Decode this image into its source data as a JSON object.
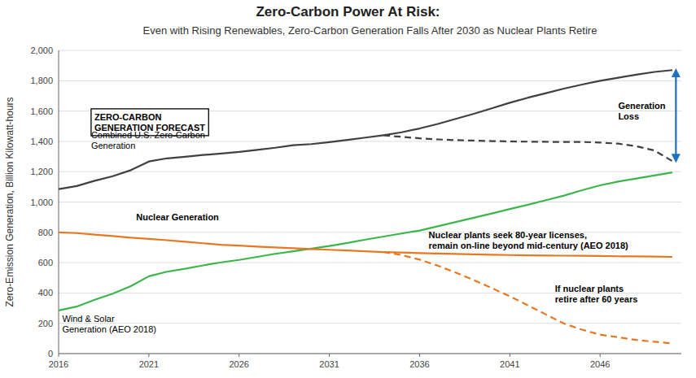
{
  "chart_data": {
    "type": "line",
    "title": "Zero-Carbon Power At Risk:",
    "subtitle": "Even with Rising Renewables, Zero-Carbon Generation Falls After 2030 as Nuclear Plants Retire",
    "y_label": "Zero-Emission Generation, Billion Kilowatt-hours",
    "xlim": [
      2016,
      2050.5
    ],
    "xticks": [
      2016,
      2021,
      2026,
      2031,
      2036,
      2041,
      2046
    ],
    "ylim": [
      0,
      2000
    ],
    "yticks": [
      0,
      200,
      400,
      600,
      800,
      {
        "value": 1000,
        "label": "1,000"
      },
      {
        "value": 1200,
        "label": "1,200"
      },
      {
        "value": 1400,
        "label": "1,400"
      },
      {
        "value": 1600,
        "label": "1,600"
      },
      {
        "value": 1800,
        "label": "1,800"
      },
      {
        "value": 2000,
        "label": "2,000"
      }
    ],
    "grid": true,
    "series": [
      {
        "color": "#3cb54a",
        "line_style": "solid",
        "x": [
          2016,
          2017,
          2018,
          2019,
          2020,
          2021,
          2022,
          2023,
          2024,
          2025,
          2026,
          2027,
          2028,
          2029,
          2030,
          2031,
          2032,
          2033,
          2034,
          2035,
          2036,
          2037,
          2038,
          2039,
          2040,
          2041,
          2042,
          2043,
          2044,
          2045,
          2046,
          2047,
          2048,
          2049,
          2050
        ],
        "values": [
          285,
          310,
          355,
          395,
          445,
          510,
          540,
          560,
          582,
          602,
          618,
          638,
          658,
          675,
          692,
          710,
          730,
          752,
          772,
          792,
          812,
          840,
          868,
          896,
          924,
          954,
          982,
          1012,
          1042,
          1078,
          1110,
          1135,
          1155,
          1175,
          1195
        ]
      },
      {
        "color": "#e87722",
        "line_style": "solid",
        "x": [
          2016,
          2017,
          2018,
          2019,
          2020,
          2021,
          2022,
          2023,
          2024,
          2025,
          2026,
          2027,
          2028,
          2029,
          2030,
          2031,
          2032,
          2033,
          2034
        ],
        "values": [
          800,
          795,
          785,
          775,
          765,
          757,
          748,
          738,
          728,
          718,
          712,
          706,
          700,
          695,
          690,
          685,
          680,
          675,
          670
        ]
      },
      {
        "color": "#e87722",
        "line_style": "solid",
        "x": [
          2034,
          2035,
          2036,
          2037,
          2038,
          2039,
          2040,
          2041,
          2042,
          2043,
          2044,
          2045,
          2046,
          2047,
          2048,
          2049,
          2050
        ],
        "values": [
          670,
          667,
          663,
          660,
          657,
          655,
          652,
          650,
          648,
          647,
          646,
          645,
          644,
          642,
          641,
          640,
          638
        ]
      },
      {
        "color": "#e87722",
        "line_style": "dashed",
        "x": [
          2034,
          2035,
          2036,
          2037,
          2038,
          2039,
          2040,
          2041,
          2042,
          2043,
          2044,
          2045,
          2046,
          2047,
          2048,
          2049,
          2050
        ],
        "values": [
          670,
          650,
          620,
          580,
          535,
          485,
          432,
          378,
          318,
          258,
          198,
          158,
          125,
          108,
          90,
          78,
          68
        ]
      },
      {
        "color": "#404040",
        "line_style": "solid",
        "x": [
          2016,
          2017,
          2018,
          2019,
          2020,
          2021,
          2022,
          2023,
          2024,
          2025,
          2026,
          2027,
          2028,
          2029,
          2030,
          2031,
          2032,
          2033,
          2034
        ],
        "values": [
          1085,
          1105,
          1140,
          1170,
          1210,
          1267,
          1288,
          1298,
          1310,
          1320,
          1330,
          1344,
          1358,
          1375,
          1382,
          1395,
          1410,
          1425,
          1440
        ]
      },
      {
        "color": "#404040",
        "line_style": "dashed",
        "x": [
          2034,
          2035,
          2036,
          2037,
          2038,
          2039,
          2040,
          2041,
          2042,
          2043,
          2044,
          2045,
          2046,
          2047,
          2048,
          2049,
          2050
        ],
        "values": [
          1440,
          1430,
          1420,
          1413,
          1408,
          1405,
          1402,
          1400,
          1398,
          1397,
          1396,
          1396,
          1392,
          1385,
          1368,
          1340,
          1270
        ]
      },
      {
        "color": "#404040",
        "line_style": "solid",
        "x": [
          2034,
          2035,
          2036,
          2037,
          2038,
          2039,
          2040,
          2041,
          2042,
          2043,
          2044,
          2045,
          2046,
          2047,
          2048,
          2049,
          2050
        ],
        "values": [
          1440,
          1460,
          1485,
          1515,
          1548,
          1582,
          1618,
          1655,
          1688,
          1718,
          1748,
          1775,
          1800,
          1820,
          1840,
          1858,
          1870
        ]
      }
    ],
    "annotations": [
      {
        "text": "ZERO-CARBON\nGENERATION FORECAST",
        "x": 2017.8,
        "y": 1620,
        "weight": "bold",
        "box": true
      },
      {
        "text": "Combined U.S. Zero-Carbon\nGeneration",
        "x": 2017.8,
        "y": 1480
      },
      {
        "text": "Wind & Solar\nGeneration (AEO 2018)",
        "x": 2016.2,
        "y": 268
      },
      {
        "text": "Nuclear Generation",
        "x": 2020.3,
        "y": 862,
        "weight": "bold",
        "anchor": "bottom"
      },
      {
        "text": "Nuclear plants seek 80-year licenses,\nremain on-line beyond mid-century (AEO 2018)",
        "x": 2036.5,
        "y": 820,
        "weight": "bold"
      },
      {
        "text": "If nuclear plants\nretire after 60 years",
        "x": 2043.5,
        "y": 465,
        "weight": "bold"
      },
      {
        "text": "Generation\nLoss",
        "x": 2047.0,
        "y": 1600,
        "weight": "bold",
        "anchor": "middle"
      }
    ],
    "arrows": [
      {
        "x": 2050.2,
        "from": 1870,
        "to": 1270,
        "color": "#2070c0"
      }
    ]
  }
}
